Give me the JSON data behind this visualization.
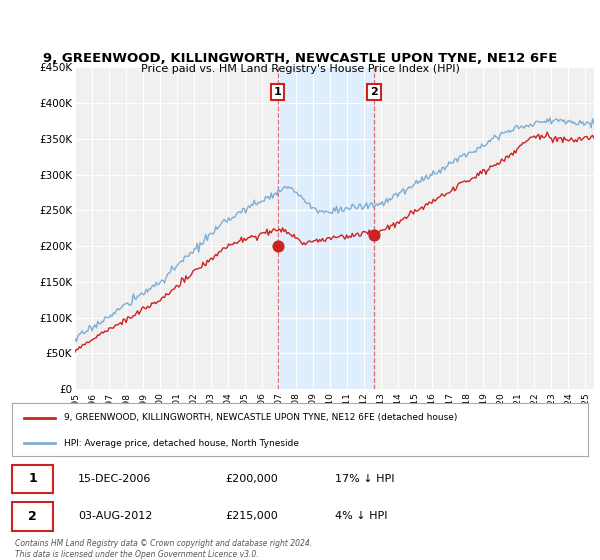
{
  "title": "9, GREENWOOD, KILLINGWORTH, NEWCASTLE UPON TYNE, NE12 6FE",
  "subtitle": "Price paid vs. HM Land Registry's House Price Index (HPI)",
  "ylabel_ticks": [
    "£0",
    "£50K",
    "£100K",
    "£150K",
    "£200K",
    "£250K",
    "£300K",
    "£350K",
    "£400K",
    "£450K"
  ],
  "ylim": [
    0,
    450000
  ],
  "xlim_start": 1995.0,
  "xlim_end": 2025.5,
  "hpi_color": "#7eadd4",
  "price_color": "#cc2222",
  "highlight_color_bg": "#ddeeff",
  "highlight_x1": 2006.92,
  "highlight_x2": 2012.58,
  "point1_x": 2006.92,
  "point1_y": 200000,
  "point1_label": "1",
  "point2_x": 2012.58,
  "point2_y": 215000,
  "point2_label": "2",
  "legend_line1": "9, GREENWOOD, KILLINGWORTH, NEWCASTLE UPON TYNE, NE12 6FE (detached house)",
  "legend_line2": "HPI: Average price, detached house, North Tyneside",
  "table_row1_num": "1",
  "table_row1_date": "15-DEC-2006",
  "table_row1_price": "£200,000",
  "table_row1_hpi": "17% ↓ HPI",
  "table_row2_num": "2",
  "table_row2_date": "03-AUG-2012",
  "table_row2_price": "£215,000",
  "table_row2_hpi": "4% ↓ HPI",
  "footer": "Contains HM Land Registry data © Crown copyright and database right 2024.\nThis data is licensed under the Open Government Licence v3.0.",
  "background_color": "#f0f0f0"
}
